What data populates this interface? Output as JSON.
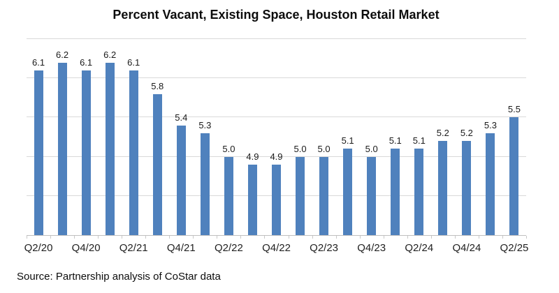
{
  "title": "Percent Vacant, Existing Space, Houston Retail Market",
  "source_note": "Source: Partnership analysis of CoStar data",
  "chart_data": {
    "type": "bar",
    "title": "Percent Vacant, Existing Space, Houston Retail Market",
    "values": [
      6.1,
      6.2,
      6.1,
      6.2,
      6.1,
      5.8,
      5.4,
      5.3,
      5.0,
      4.9,
      4.9,
      5.0,
      5.0,
      5.1,
      5.0,
      5.1,
      5.1,
      5.2,
      5.2,
      5.3,
      5.5
    ],
    "data_labels": [
      "6.1",
      "6.2",
      "6.1",
      "6.2",
      "6.1",
      "5.8",
      "5.4",
      "5.3",
      "5.0",
      "4.9",
      "4.9",
      "5.0",
      "5.0",
      "5.1",
      "5.0",
      "5.1",
      "5.1",
      "5.2",
      "5.2",
      "5.3",
      "5.5"
    ],
    "x_tick_labels": [
      "Q2/20",
      "Q4/20",
      "Q2/21",
      "Q4/21",
      "Q2/22",
      "Q4/22",
      "Q2/23",
      "Q4/23",
      "Q2/24",
      "Q4/24",
      "Q2/25"
    ],
    "x_tick_every": 2,
    "xlabel": "",
    "ylabel": "",
    "ylim": [
      4.0,
      6.5
    ],
    "gridline_values": [
      4.5,
      5.0,
      5.5,
      6.0,
      6.5
    ],
    "y_axis_labels_visible": false,
    "legend": "none",
    "bar_color": "#4f81bd",
    "gridline_color": "#d9d9d9",
    "axis_color": "#bfbfbf",
    "tick_color": "#c9c9c9",
    "background_color": "#ffffff"
  }
}
